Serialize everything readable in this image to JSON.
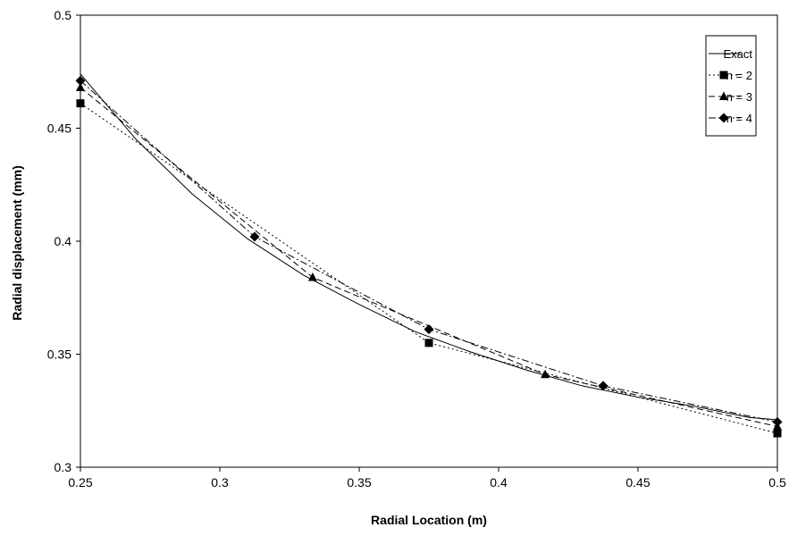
{
  "chart_data": {
    "type": "line",
    "title": "",
    "xlabel": "Radial Location (m)",
    "ylabel": "Radial displacement (mm)",
    "xlim": [
      0.25,
      0.5
    ],
    "ylim": [
      0.3,
      0.5
    ],
    "xticks": [
      0.25,
      0.3,
      0.35,
      0.4,
      0.45,
      0.5
    ],
    "yticks": [
      0.3,
      0.35,
      0.4,
      0.45,
      0.5
    ],
    "xtick_labels": [
      "0.25",
      "0.3",
      "0.35",
      "0.4",
      "0.45",
      "0.5"
    ],
    "ytick_labels": [
      "0.3",
      "0.35",
      "0.4",
      "0.45",
      "0.5"
    ],
    "grid": false,
    "legend_position": "top-right",
    "series": [
      {
        "name": "Exact",
        "style": "solid",
        "marker": "none",
        "x": [
          0.25,
          0.27,
          0.29,
          0.31,
          0.33,
          0.35,
          0.37,
          0.39,
          0.41,
          0.43,
          0.45,
          0.47,
          0.49,
          0.5
        ],
        "y": [
          0.474,
          0.445,
          0.421,
          0.401,
          0.385,
          0.372,
          0.36,
          0.351,
          0.343,
          0.336,
          0.331,
          0.327,
          0.322,
          0.321
        ]
      },
      {
        "name": "n = 2",
        "style": "dotted",
        "marker": "square",
        "x": [
          0.25,
          0.375,
          0.5
        ],
        "y": [
          0.461,
          0.355,
          0.315
        ]
      },
      {
        "name": "n = 3",
        "style": "dashed",
        "marker": "triangle",
        "x": [
          0.25,
          0.3333,
          0.4167,
          0.5
        ],
        "y": [
          0.468,
          0.384,
          0.341,
          0.318
        ]
      },
      {
        "name": "n = 4",
        "style": "dashdot",
        "marker": "diamond",
        "x": [
          0.25,
          0.3125,
          0.375,
          0.4375,
          0.5
        ],
        "y": [
          0.471,
          0.402,
          0.361,
          0.336,
          0.32
        ]
      }
    ]
  }
}
